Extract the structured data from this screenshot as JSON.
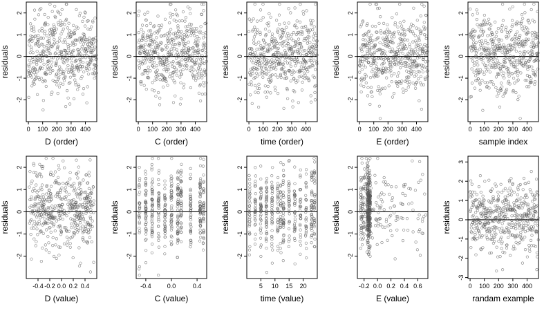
{
  "chart_data": [
    {
      "type": "scatter",
      "xlabel": "D (order)",
      "ylabel": "residuals",
      "xlim": [
        -15,
        480
      ],
      "ylim": [
        -3,
        2.5
      ],
      "xticks": [
        0,
        100,
        200,
        300,
        400
      ],
      "yticks": [
        -2,
        -1,
        0,
        1,
        2
      ],
      "hline": 0,
      "points_shape": "open circle",
      "seed": 11,
      "n": 480,
      "xkind": "order",
      "xticklabels": [
        "0",
        "100",
        "200",
        "300",
        "400"
      ]
    },
    {
      "type": "scatter",
      "xlabel": "C (order)",
      "ylabel": "residuals",
      "xlim": [
        -15,
        480
      ],
      "ylim": [
        -3,
        2.5
      ],
      "xticks": [
        0,
        100,
        200,
        300,
        400
      ],
      "yticks": [
        -2,
        -1,
        0,
        1,
        2
      ],
      "hline": 0,
      "points_shape": "open circle",
      "seed": 23,
      "n": 480,
      "xkind": "order",
      "xticklabels": [
        "0",
        "100",
        "200",
        "300",
        "400"
      ]
    },
    {
      "type": "scatter",
      "xlabel": "time (order)",
      "ylabel": "residuals",
      "xlim": [
        -15,
        480
      ],
      "ylim": [
        -3,
        2.5
      ],
      "xticks": [
        0,
        100,
        200,
        300,
        400
      ],
      "yticks": [
        -2,
        -1,
        0,
        1,
        2
      ],
      "hline": 0,
      "points_shape": "open circle",
      "seed": 37,
      "n": 480,
      "xkind": "order",
      "xticklabels": [
        "0",
        "100",
        "200",
        "300",
        "400"
      ]
    },
    {
      "type": "scatter",
      "xlabel": "E (order)",
      "ylabel": "residuals",
      "xlim": [
        -15,
        480
      ],
      "ylim": [
        -3,
        2.5
      ],
      "xticks": [
        0,
        100,
        200,
        300,
        400
      ],
      "yticks": [
        -2,
        -1,
        0,
        1,
        2
      ],
      "hline": 0,
      "points_shape": "open circle",
      "seed": 41,
      "n": 480,
      "xkind": "order",
      "xticklabels": [
        "0",
        "100",
        "200",
        "300",
        "400"
      ]
    },
    {
      "type": "scatter",
      "xlabel": "sample index",
      "ylabel": "residuals",
      "xlim": [
        -15,
        480
      ],
      "ylim": [
        -3,
        2.5
      ],
      "xticks": [
        0,
        100,
        200,
        300,
        400
      ],
      "yticks": [
        -2,
        -1,
        0,
        1,
        2
      ],
      "hline": 0,
      "points_shape": "open circle",
      "seed": 53,
      "n": 480,
      "xkind": "order",
      "xticklabels": [
        "0",
        "100",
        "200",
        "300",
        "400"
      ]
    },
    {
      "type": "scatter",
      "xlabel": "D (value)",
      "ylabel": "residuals",
      "xlim": [
        -0.6,
        0.6
      ],
      "ylim": [
        -3,
        2.5
      ],
      "xticks": [
        -0.4,
        -0.2,
        0,
        0.2,
        0.4
      ],
      "yticks": [
        -2,
        -1,
        0,
        1,
        2
      ],
      "hline": 0,
      "points_shape": "open circle",
      "seed": 61,
      "n": 480,
      "xkind": "uniform",
      "xrange": [
        -0.55,
        0.55
      ],
      "xticklabels": [
        "-0.4",
        "-0.2",
        "0.0",
        "0.2",
        "0.4"
      ]
    },
    {
      "type": "scatter",
      "xlabel": "C (value)",
      "ylabel": "residuals",
      "xlim": [
        -0.55,
        0.55
      ],
      "ylim": [
        -3,
        2.5
      ],
      "xticks": [
        -0.4,
        0,
        0.4
      ],
      "yticks": [
        -2,
        -1,
        0,
        1,
        2
      ],
      "hline": 0,
      "points_shape": "open circle",
      "seed": 73,
      "n": 480,
      "xkind": "discrete",
      "levels": [
        -0.5,
        -0.4,
        -0.3,
        -0.2,
        -0.1,
        0,
        0.1,
        0.15,
        0.3,
        0.45,
        0.5
      ],
      "xticklabels": [
        "-0.4",
        "0.0",
        "0.4"
      ]
    },
    {
      "type": "scatter",
      "xlabel": "time (value)",
      "ylabel": "residuals",
      "xlim": [
        0,
        25
      ],
      "ylim": [
        -3,
        2.5
      ],
      "xticks": [
        5,
        10,
        15,
        20
      ],
      "yticks": [
        -2,
        -1,
        0,
        1,
        2
      ],
      "hline": 0,
      "points_shape": "open circle",
      "seed": 89,
      "n": 480,
      "xkind": "discrete",
      "levels": [
        1,
        3,
        5,
        7,
        9,
        11,
        12,
        13,
        15,
        17,
        19,
        21,
        23,
        24
      ],
      "xticklabels": [
        "5",
        "10",
        "15",
        "20"
      ]
    },
    {
      "type": "scatter",
      "xlabel": "E (value)",
      "ylabel": "residuals",
      "xlim": [
        -0.3,
        0.75
      ],
      "ylim": [
        -3,
        2.5
      ],
      "xticks": [
        -0.2,
        0,
        0.2,
        0.4,
        0.6
      ],
      "yticks": [
        -2,
        -1,
        0,
        1,
        2
      ],
      "hline": 0,
      "points_shape": "open circle",
      "seed": 97,
      "n": 480,
      "xkind": "skewed",
      "xrange": [
        -0.25,
        0.72
      ],
      "xticklabels": [
        "-0.2",
        "0.0",
        "0.2",
        "0.4",
        "0.6"
      ]
    },
    {
      "type": "scatter",
      "xlabel": "randam example",
      "ylabel": "residuals",
      "xlim": [
        -15,
        480
      ],
      "ylim": [
        -3.05,
        3.3
      ],
      "xticks": [
        0,
        100,
        200,
        300,
        400
      ],
      "yticks": [
        -3,
        -2,
        -1,
        0,
        1,
        2,
        3
      ],
      "hline": 0,
      "points_shape": "open circle",
      "seed": 103,
      "n": 480,
      "xkind": "order",
      "xticklabels": [
        "0",
        "100",
        "200",
        "300",
        "400"
      ]
    }
  ]
}
